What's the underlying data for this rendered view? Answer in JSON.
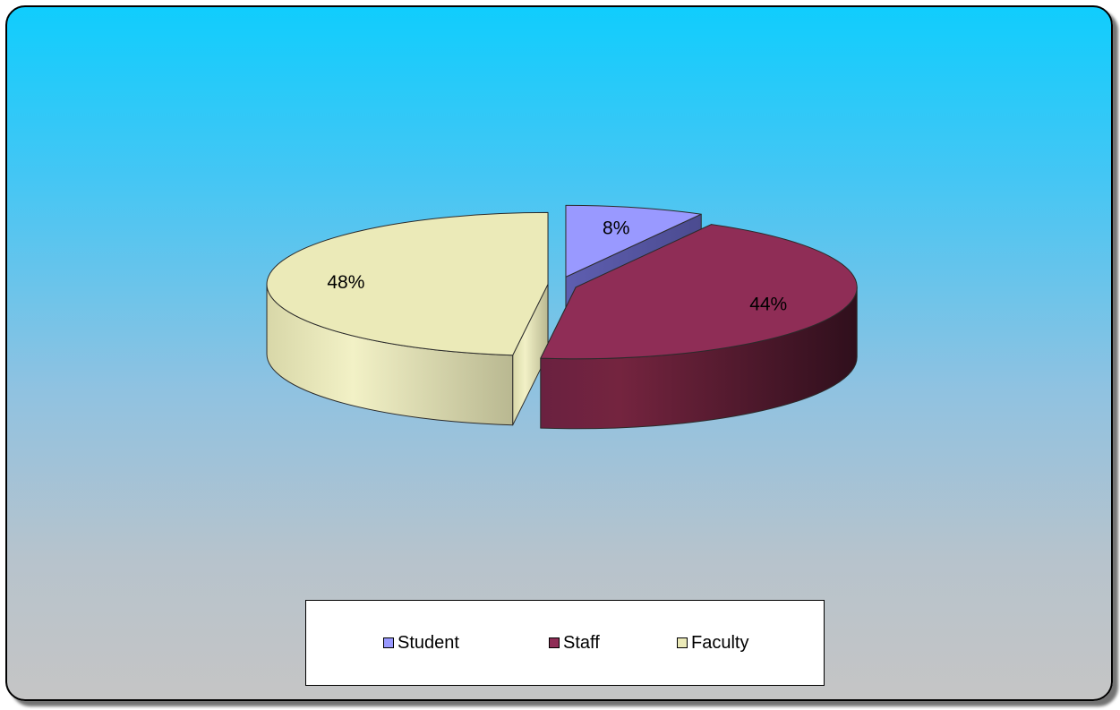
{
  "chart_data": {
    "type": "pie",
    "three_d": true,
    "exploded": true,
    "categories": [
      "Student",
      "Staff",
      "Faculty"
    ],
    "values": [
      8,
      44,
      48
    ],
    "labels": [
      "8%",
      "44%",
      "48%"
    ],
    "colors": [
      "#9999ff",
      "#8f2d56",
      "#ebeab8"
    ],
    "legend_position": "bottom"
  },
  "legend": {
    "items": [
      {
        "label": "Student",
        "color": "#9999ff"
      },
      {
        "label": "Staff",
        "color": "#8f2d56"
      },
      {
        "label": "Faculty",
        "color": "#ebeab8"
      }
    ]
  }
}
